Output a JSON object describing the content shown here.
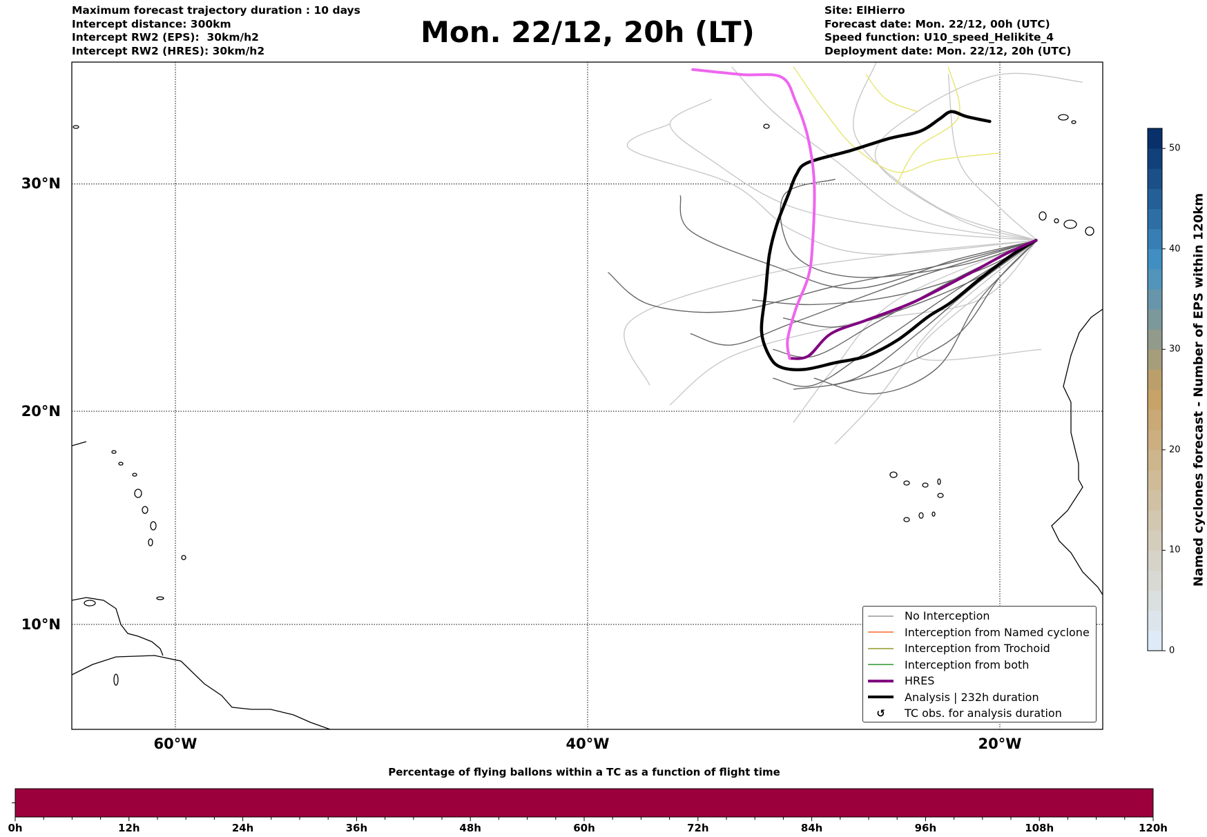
{
  "header": {
    "left_lines": [
      "Maximum forecast trajectory duration : 10 days",
      "Intercept distance: 300km",
      "Intercept RW2 (EPS):  30km/h2",
      "Intercept RW2 (HRES): 30km/h2"
    ],
    "title": "Mon. 22/12, 20h (LT)",
    "right_lines": [
      "Site: ElHierro",
      "Forecast date: Mon. 22/12, 00h (UTC)",
      "Speed function: U10_speed_Helikite_4",
      "Deployment date: Mon. 22/12, 20h (UTC)"
    ]
  },
  "chart_data": [
    {
      "type": "line",
      "title": "Mon. 22/12, 20h (LT)",
      "projection": "mercator",
      "xlim": [
        -65,
        -15
      ],
      "ylim": [
        5,
        35
      ],
      "grid": true,
      "xticks": [
        -60,
        -40,
        -20
      ],
      "xtick_labels": [
        "60°W",
        "40°W",
        "20°W"
      ],
      "yticks": [
        30,
        20,
        10
      ],
      "ytick_labels": [
        "30°N",
        "20°N",
        "10°N"
      ],
      "legend_position": "bottom-right",
      "legend": [
        {
          "label": "No Interception",
          "color": "#808080",
          "style": "thin"
        },
        {
          "label": "Interception from Named cyclone",
          "color": "#ff4500",
          "style": "thin"
        },
        {
          "label": "Interception from Trochoid",
          "color": "#808000",
          "style": "thin"
        },
        {
          "label": "Interception from both",
          "color": "#008000",
          "style": "thin"
        },
        {
          "label": "HRES",
          "color": "#800080",
          "style": "thick"
        },
        {
          "label": "Analysis | 232h duration",
          "color": "#000000",
          "style": "thick"
        },
        {
          "label": "TC obs. for analysis duration",
          "color": "#000000",
          "style": "marker"
        }
      ],
      "series": {
        "hres": {
          "color_start": "#800080",
          "color_end": "#ee66ee",
          "points": [
            [
              -18.24,
              27.6
            ],
            [
              -19.74,
              27.0
            ],
            [
              -21.6,
              26.1
            ],
            [
              -24.2,
              24.9
            ],
            [
              -26.5,
              24.1
            ],
            [
              -28.2,
              23.5
            ],
            [
              -29.3,
              22.5
            ],
            [
              -30.2,
              22.4
            ],
            [
              -30.3,
              23.2
            ],
            [
              -29.9,
              24.6
            ],
            [
              -29.3,
              26.0
            ],
            [
              -29.1,
              27.3
            ],
            [
              -29.0,
              29.95
            ],
            [
              -29.3,
              31.9
            ],
            [
              -29.9,
              33.4
            ],
            [
              -30.6,
              34.4
            ],
            [
              -32.5,
              34.5
            ],
            [
              -34.9,
              34.7
            ]
          ]
        },
        "analysis": {
          "color": "#000000",
          "points": [
            [
              -18.24,
              27.6
            ],
            [
              -19.36,
              27.0
            ],
            [
              -20.86,
              26.0
            ],
            [
              -22.36,
              24.9
            ],
            [
              -23.49,
              24.25
            ],
            [
              -24.99,
              23.2
            ],
            [
              -26.49,
              22.5
            ],
            [
              -27.99,
              22.2
            ],
            [
              -29.49,
              21.9
            ],
            [
              -30.62,
              22.0
            ],
            [
              -31.18,
              22.5
            ],
            [
              -31.56,
              23.6
            ],
            [
              -31.37,
              25.3
            ],
            [
              -31.18,
              27.0
            ],
            [
              -30.81,
              28.3
            ],
            [
              -30.24,
              29.6
            ],
            [
              -29.87,
              30.4
            ],
            [
              -29.31,
              30.9
            ],
            [
              -27.24,
              31.4
            ],
            [
              -25.37,
              31.9
            ],
            [
              -23.86,
              32.2
            ],
            [
              -22.93,
              32.7
            ],
            [
              -22.36,
              33.0
            ],
            [
              -21.61,
              32.8
            ],
            [
              -20.49,
              32.6
            ]
          ]
        },
        "eps_dark": {
          "color": "#666666",
          "tracks": [
            [
              [
                -18.2,
                27.6
              ],
              [
                -21,
                26.3
              ],
              [
                -25,
                25.2
              ],
              [
                -29,
                24.8
              ],
              [
                -32,
                25.0
              ]
            ],
            [
              [
                -18.2,
                27.6
              ],
              [
                -22,
                26
              ],
              [
                -26,
                24
              ],
              [
                -29,
                22.5
              ],
              [
                -31,
                22.8
              ]
            ],
            [
              [
                -18.2,
                27.6
              ],
              [
                -21,
                25.8
              ],
              [
                -24,
                23.5
              ],
              [
                -27,
                21.5
              ],
              [
                -30,
                21.0
              ]
            ],
            [
              [
                -18.2,
                27.6
              ],
              [
                -22,
                25.5
              ],
              [
                -26,
                23.0
              ],
              [
                -29,
                21.2
              ],
              [
                -31,
                21.5
              ]
            ],
            [
              [
                -18.2,
                27.6
              ],
              [
                -23,
                26.5
              ],
              [
                -28,
                25.6
              ],
              [
                -33,
                24.5
              ],
              [
                -37,
                24.8
              ],
              [
                -39,
                26.2
              ]
            ],
            [
              [
                -18.2,
                27.6
              ],
              [
                -22,
                26.8
              ],
              [
                -27,
                25.5
              ],
              [
                -31,
                26.5
              ],
              [
                -35,
                28
              ],
              [
                -35.5,
                29.5
              ]
            ],
            [
              [
                -18.2,
                27.6
              ],
              [
                -21,
                25
              ],
              [
                -23,
                22
              ],
              [
                -26,
                20.8
              ],
              [
                -29,
                21.5
              ]
            ],
            [
              [
                -18.2,
                27.6
              ],
              [
                -24,
                26
              ],
              [
                -30,
                24
              ],
              [
                -33,
                23
              ],
              [
                -35,
                23.5
              ]
            ],
            [
              [
                -18.2,
                27.6
              ],
              [
                -22,
                26.5
              ],
              [
                -27,
                26
              ],
              [
                -30,
                27
              ],
              [
                -30.5,
                29.5
              ],
              [
                -28,
                30.2
              ]
            ],
            [
              [
                -18.2,
                27.6
              ],
              [
                -21,
                26
              ],
              [
                -25,
                24.5
              ],
              [
                -28,
                23.8
              ],
              [
                -30.5,
                24.2
              ]
            ],
            [
              [
                -18.2,
                27.6
              ],
              [
                -20,
                26
              ],
              [
                -22,
                23.5
              ],
              [
                -25,
                22
              ],
              [
                -28,
                21.2
              ]
            ]
          ]
        },
        "eps_light": {
          "color": "#c8c8c8",
          "tracks": [
            [
              [
                -18.2,
                27.6
              ],
              [
                -24,
                28
              ],
              [
                -30,
                29
              ],
              [
                -34,
                31
              ],
              [
                -36,
                32.5
              ],
              [
                -34,
                33.5
              ]
            ],
            [
              [
                -18.2,
                27.6
              ],
              [
                -25,
                27
              ],
              [
                -32,
                26
              ],
              [
                -38,
                24
              ],
              [
                -37,
                21.2
              ]
            ],
            [
              [
                -18.2,
                27.6
              ],
              [
                -25,
                25
              ],
              [
                -28,
                22
              ],
              [
                -30,
                19.5
              ]
            ],
            [
              [
                -18.2,
                27.6
              ],
              [
                -23,
                24
              ],
              [
                -26,
                20.5
              ],
              [
                -28,
                18.5
              ]
            ],
            [
              [
                -18.2,
                27.6
              ],
              [
                -22,
                28.5
              ],
              [
                -26,
                31
              ],
              [
                -24,
                33
              ],
              [
                -20,
                34.5
              ],
              [
                -16,
                34.2
              ]
            ],
            [
              [
                -18.2,
                27.6
              ],
              [
                -24,
                28.5
              ],
              [
                -28,
                31
              ],
              [
                -31,
                33
              ],
              [
                -33,
                34.8
              ]
            ],
            [
              [
                -18.2,
                27.6
              ],
              [
                -20,
                26
              ],
              [
                -24,
                22.5
              ],
              [
                -18,
                22.8
              ]
            ],
            [
              [
                -18.2,
                27.6
              ],
              [
                -26,
                27
              ],
              [
                -30,
                28
              ],
              [
                -33,
                30
              ],
              [
                -38,
                31.5
              ],
              [
                -36,
                32.5
              ]
            ],
            [
              [
                -18.2,
                27.6
              ],
              [
                -23,
                29
              ],
              [
                -27,
                32
              ],
              [
                -26,
                35
              ]
            ],
            [
              [
                -18.2,
                27.6
              ],
              [
                -21,
                25
              ],
              [
                -27,
                24
              ],
              [
                -33,
                22.5
              ],
              [
                -36,
                20.3
              ]
            ],
            [
              [
                -18.2,
                27.6
              ],
              [
                -20,
                29
              ],
              [
                -22,
                31
              ],
              [
                -22.5,
                34.5
              ]
            ]
          ]
        },
        "eps_yellow": {
          "color": "#e6e66e",
          "tracks": [
            [
              [
                -25,
                30
              ],
              [
                -24,
                31.5
              ],
              [
                -22,
                32.8
              ],
              [
                -22.5,
                34.8
              ]
            ],
            [
              [
                -30,
                34.8
              ],
              [
                -28.5,
                33
              ],
              [
                -27,
                31.5
              ],
              [
                -25,
                30.5
              ],
              [
                -23,
                31
              ],
              [
                -20,
                31.3
              ]
            ],
            [
              [
                -26.5,
                34.5
              ],
              [
                -25.5,
                33.5
              ],
              [
                -24,
                33
              ]
            ]
          ]
        }
      }
    },
    {
      "type": "heatmap",
      "title": "Named cyclones forecast - Number of EPS within 120km",
      "colormap": "Blues",
      "range": [
        0,
        52
      ],
      "ticks": [
        "0",
        "10",
        "20",
        "30",
        "40",
        "50"
      ]
    },
    {
      "type": "bar",
      "title": "Percentage of flying ballons within a TC as a function of flight time",
      "xlim": [
        0,
        120
      ],
      "tick_labels": [
        "0h",
        "12h",
        "24h",
        "36h",
        "48h",
        "60h",
        "72h",
        "84h",
        "96h",
        "108h",
        "120h"
      ],
      "fill_color": "#9b003c"
    }
  ]
}
